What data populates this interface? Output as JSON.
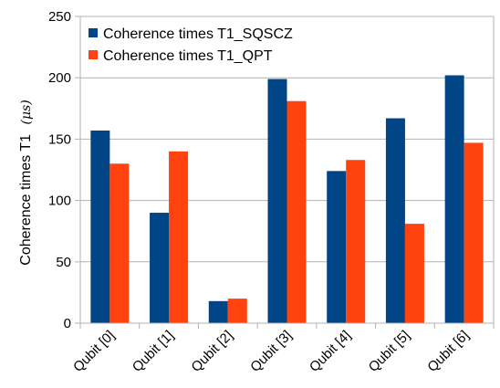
{
  "chart_data": {
    "type": "bar",
    "title": "",
    "xlabel": "",
    "ylabel": "Coherence times T1",
    "ylabel_unit": "(μs)",
    "ylim": [
      0,
      250
    ],
    "yticks": [
      0,
      50,
      100,
      150,
      200,
      250
    ],
    "grid": "horizontal",
    "legend_position": "top-left",
    "categories": [
      "Qubit [0]",
      "Qubit [1]",
      "Qubit [2]",
      "Qubit [3]",
      "Qubit [4]",
      "Qubit [5]",
      "Qubit [6]"
    ],
    "series": [
      {
        "name": "Coherence times T1_SQSCZ",
        "color": "#004586",
        "values": [
          157,
          90,
          18,
          199,
          124,
          167,
          202
        ]
      },
      {
        "name": "Coherence times T1_QPT",
        "color": "#ff420e",
        "values": [
          130,
          140,
          20,
          181,
          133,
          81,
          147
        ]
      }
    ]
  }
}
